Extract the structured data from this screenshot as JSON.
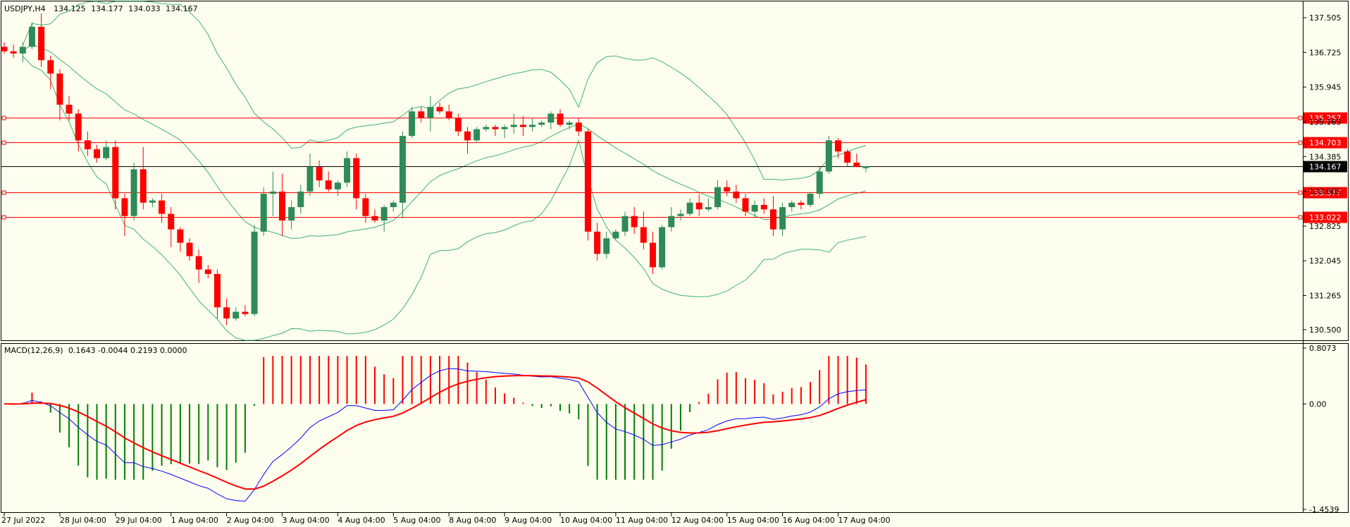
{
  "header": {
    "symbol": "USDJPY,H4",
    "open": "134.125",
    "high": "134.177",
    "low": "134.033",
    "close": "134.167"
  },
  "macd_header": {
    "label": "MACD(12,26,9)",
    "values": "0.1643 -0.0044 0.2193 0.0000"
  },
  "chart_data": [
    {
      "type": "candlestick",
      "name": "USDJPY,H4",
      "price_axis_ticks": [
        "137.505",
        "136.725",
        "135.945",
        "135.165",
        "134.385",
        "133.605",
        "132.825",
        "132.045",
        "131.265",
        "130.500"
      ],
      "current_price": "134.167",
      "horizontal_levels": [
        "135.257",
        "134.703",
        "133.577",
        "133.022"
      ],
      "bollinger_bands": true,
      "ylim": [
        130.26,
        137.87
      ],
      "colors": {
        "bull": "#2e8b57",
        "bear": "#ff0000",
        "bands": "#3cb371",
        "level": "#ff0000",
        "price_line": "#000000"
      },
      "x_axis_labels": [
        "27 Jul 2022",
        "28 Jul 04:00",
        "29 Jul 04:00",
        "1 Aug 04:00",
        "2 Aug 04:00",
        "3 Aug 04:00",
        "4 Aug 04:00",
        "5 Aug 04:00",
        "8 Aug 04:00",
        "9 Aug 04:00",
        "10 Aug 04:00",
        "11 Aug 04:00",
        "12 Aug 04:00",
        "15 Aug 04:00",
        "16 Aug 04:00",
        "17 Aug 04:00"
      ],
      "candles": [
        [
          136.85,
          136.95,
          136.7,
          136.75
        ],
        [
          136.75,
          136.9,
          136.6,
          136.7
        ],
        [
          136.7,
          136.95,
          136.5,
          136.85
        ],
        [
          136.85,
          137.4,
          136.8,
          137.3
        ],
        [
          137.3,
          137.6,
          136.4,
          136.55
        ],
        [
          136.55,
          136.65,
          135.9,
          136.25
        ],
        [
          136.25,
          136.35,
          135.2,
          135.55
        ],
        [
          135.55,
          135.75,
          135.2,
          135.35
        ],
        [
          135.35,
          135.45,
          134.5,
          134.75
        ],
        [
          134.75,
          134.95,
          134.4,
          134.55
        ],
        [
          134.55,
          134.65,
          134.25,
          134.35
        ],
        [
          134.35,
          134.75,
          134.3,
          134.6
        ],
        [
          134.6,
          134.75,
          133.2,
          133.45
        ],
        [
          133.45,
          133.55,
          132.6,
          133.05
        ],
        [
          133.05,
          134.25,
          132.95,
          134.1
        ],
        [
          134.1,
          134.6,
          133.2,
          133.35
        ],
        [
          133.35,
          133.45,
          133.25,
          133.4
        ],
        [
          133.4,
          133.55,
          132.9,
          133.1
        ],
        [
          133.1,
          133.25,
          132.35,
          132.75
        ],
        [
          132.75,
          132.8,
          132.25,
          132.45
        ],
        [
          132.45,
          132.55,
          132.05,
          132.15
        ],
        [
          132.15,
          132.3,
          131.55,
          131.85
        ],
        [
          131.85,
          131.95,
          131.65,
          131.75
        ],
        [
          131.75,
          131.85,
          130.75,
          131.0
        ],
        [
          131.0,
          131.2,
          130.6,
          130.75
        ],
        [
          130.75,
          131.0,
          130.7,
          130.9
        ],
        [
          130.9,
          131.05,
          130.8,
          130.85
        ],
        [
          130.85,
          132.85,
          130.8,
          132.7
        ],
        [
          132.7,
          133.7,
          132.6,
          133.55
        ],
        [
          133.55,
          134.05,
          133.05,
          133.6
        ],
        [
          133.6,
          134.0,
          132.6,
          132.95
        ],
        [
          132.95,
          133.4,
          132.75,
          133.25
        ],
        [
          133.25,
          133.75,
          133.1,
          133.6
        ],
        [
          133.6,
          134.45,
          133.5,
          134.15
        ],
        [
          134.15,
          134.3,
          133.7,
          133.85
        ],
        [
          133.85,
          134.05,
          133.6,
          133.65
        ],
        [
          133.65,
          133.85,
          133.5,
          133.8
        ],
        [
          133.8,
          134.5,
          133.7,
          134.35
        ],
        [
          134.35,
          134.45,
          133.2,
          133.45
        ],
        [
          133.45,
          133.55,
          132.9,
          133.05
        ],
        [
          133.05,
          133.2,
          132.9,
          132.95
        ],
        [
          132.95,
          133.3,
          132.7,
          133.25
        ],
        [
          133.25,
          133.4,
          133.15,
          133.35
        ],
        [
          133.35,
          134.95,
          133.0,
          134.85
        ],
        [
          134.85,
          135.5,
          134.8,
          135.4
        ],
        [
          135.4,
          135.5,
          135.15,
          135.25
        ],
        [
          135.25,
          135.75,
          134.95,
          135.5
        ],
        [
          135.5,
          135.6,
          135.35,
          135.4
        ],
        [
          135.4,
          135.55,
          135.2,
          135.25
        ],
        [
          135.25,
          135.35,
          134.85,
          134.95
        ],
        [
          134.95,
          135.05,
          134.45,
          134.75
        ],
        [
          134.75,
          135.05,
          134.7,
          135.0
        ],
        [
          135.0,
          135.1,
          134.95,
          135.05
        ],
        [
          135.05,
          135.1,
          134.85,
          135.0
        ],
        [
          135.0,
          135.1,
          134.8,
          135.05
        ],
        [
          135.05,
          135.35,
          134.9,
          135.1
        ],
        [
          135.1,
          135.3,
          134.85,
          135.05
        ],
        [
          135.05,
          135.25,
          134.95,
          135.1
        ],
        [
          135.1,
          135.2,
          135.05,
          135.15
        ],
        [
          135.15,
          135.4,
          135.0,
          135.35
        ],
        [
          135.35,
          135.45,
          135.05,
          135.1
        ],
        [
          135.1,
          135.2,
          135.0,
          135.15
        ],
        [
          135.15,
          135.25,
          134.85,
          134.95
        ],
        [
          134.95,
          135.0,
          132.5,
          132.7
        ],
        [
          132.7,
          132.9,
          132.05,
          132.2
        ],
        [
          132.2,
          132.7,
          132.1,
          132.55
        ],
        [
          132.55,
          132.75,
          132.5,
          132.7
        ],
        [
          132.7,
          133.15,
          132.6,
          133.05
        ],
        [
          133.05,
          133.25,
          132.65,
          132.8
        ],
        [
          132.8,
          133.15,
          132.3,
          132.45
        ],
        [
          132.45,
          132.7,
          131.75,
          131.9
        ],
        [
          131.9,
          132.85,
          131.85,
          132.8
        ],
        [
          132.8,
          133.25,
          132.7,
          133.05
        ],
        [
          133.05,
          133.2,
          132.95,
          133.1
        ],
        [
          133.1,
          133.45,
          133.05,
          133.35
        ],
        [
          133.35,
          133.55,
          133.05,
          133.2
        ],
        [
          133.2,
          133.45,
          133.15,
          133.25
        ],
        [
          133.25,
          133.85,
          133.2,
          133.7
        ],
        [
          133.7,
          133.85,
          133.5,
          133.6
        ],
        [
          133.6,
          133.75,
          133.35,
          133.45
        ],
        [
          133.45,
          133.55,
          133.05,
          133.15
        ],
        [
          133.15,
          133.4,
          133.0,
          133.3
        ],
        [
          133.3,
          133.45,
          133.1,
          133.2
        ],
        [
          133.2,
          133.5,
          132.6,
          132.75
        ],
        [
          132.75,
          133.35,
          132.6,
          133.25
        ],
        [
          133.25,
          133.4,
          133.15,
          133.35
        ],
        [
          133.35,
          133.4,
          133.2,
          133.3
        ],
        [
          133.3,
          133.6,
          133.25,
          133.55
        ],
        [
          133.55,
          134.15,
          133.45,
          134.05
        ],
        [
          134.05,
          134.85,
          134.0,
          134.75
        ],
        [
          134.75,
          134.8,
          134.35,
          134.5
        ],
        [
          134.5,
          134.55,
          134.15,
          134.25
        ],
        [
          134.25,
          134.45,
          134.2,
          134.15
        ],
        [
          134.125,
          134.177,
          134.033,
          134.167
        ]
      ]
    },
    {
      "type": "bar",
      "name": "MACD(12,26,9)",
      "main": 0.1643,
      "signal": -0.0044,
      "histogram": 0.2193,
      "zero": 0.0,
      "axis_ticks": [
        "0.8073",
        "0.00",
        "-1.4539"
      ],
      "ylim": [
        -1.4539,
        0.8073
      ],
      "colors": {
        "hist_pos": "#ff0000",
        "hist_neg": "#008000",
        "main": "#0000ff",
        "signal": "#ff0000"
      }
    }
  ]
}
